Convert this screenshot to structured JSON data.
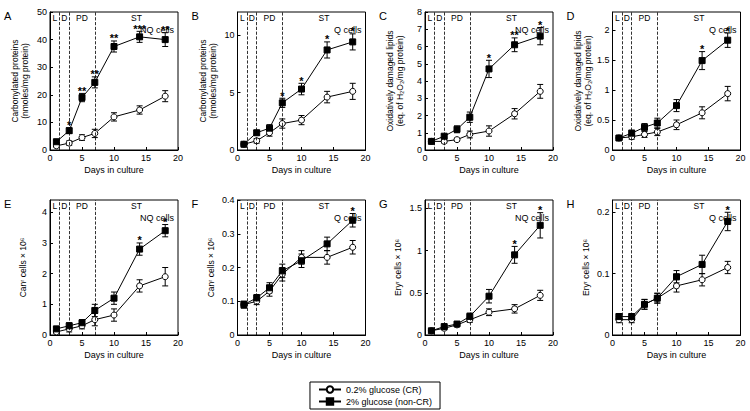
{
  "chart_data": [
    {
      "type": "line",
      "title": "A",
      "subtitle": "NQ cells",
      "x_label": "Days in culture",
      "y_label": "Carbonylated proteins\n(nmoles/mg protein)",
      "x": [
        1,
        3,
        5,
        7,
        10,
        14,
        18
      ],
      "xlim": [
        0,
        20
      ],
      "xticks": [
        0,
        5,
        10,
        15,
        20
      ],
      "ylim": [
        0,
        50
      ],
      "yticks": [
        0,
        10,
        20,
        30,
        40,
        50
      ],
      "phases": [
        {
          "label": "L",
          "start": 0,
          "end": 1.5
        },
        {
          "label": "D",
          "start": 1.5,
          "end": 3
        },
        {
          "label": "PD",
          "start": 3,
          "end": 7
        },
        {
          "label": "ST",
          "start": 7,
          "end": 20
        }
      ],
      "legend": "bottom",
      "series": [
        {
          "name": "0.2% glucose (CR)",
          "color": "#000000",
          "marker": "open_circle",
          "values": [
            1.5,
            2.5,
            4.5,
            6,
            12,
            14.5,
            19.5
          ],
          "errors": [
            0.5,
            0.8,
            1,
            1.5,
            1.5,
            1.5,
            2
          ]
        },
        {
          "name": "2% glucose (non-CR)",
          "color": "#000000",
          "marker": "square",
          "values": [
            3,
            7,
            19,
            24.5,
            37.5,
            41,
            40
          ],
          "errors": [
            0.5,
            1,
            1.5,
            2,
            2,
            2,
            2.5
          ],
          "significance": [
            null,
            "*",
            "**",
            "**",
            "**",
            "***",
            "**"
          ]
        }
      ]
    },
    {
      "type": "line",
      "title": "B",
      "subtitle": "Q cells",
      "x_label": "Days in culture",
      "y_label": "Carbonylated proteins\n(nmoles/mg protein)",
      "x": [
        1,
        3,
        5,
        7,
        10,
        14,
        18
      ],
      "xlim": [
        0,
        20
      ],
      "xticks": [
        0,
        5,
        10,
        15,
        20
      ],
      "ylim": [
        0,
        12
      ],
      "yticks": [
        0,
        5,
        10
      ],
      "phases": [
        {
          "label": "L",
          "start": 0,
          "end": 1.5
        },
        {
          "label": "D",
          "start": 1.5,
          "end": 3
        },
        {
          "label": "PD",
          "start": 3,
          "end": 7
        },
        {
          "label": "ST",
          "start": 7,
          "end": 20
        }
      ],
      "series": [
        {
          "name": "0.2% glucose (CR)",
          "color": "#000000",
          "marker": "open_circle",
          "values": [
            0.5,
            0.8,
            1.5,
            2.3,
            2.6,
            4.6,
            5.1
          ],
          "errors": [
            0.1,
            0.2,
            0.3,
            0.4,
            0.4,
            0.5,
            0.7
          ]
        },
        {
          "name": "2% glucose (non-CR)",
          "color": "#000000",
          "marker": "square",
          "values": [
            0.5,
            1.5,
            1.9,
            4.1,
            5.3,
            8.7,
            9.4
          ],
          "errors": [
            0.1,
            0.2,
            0.3,
            0.4,
            0.5,
            0.7,
            0.7
          ],
          "significance": [
            null,
            null,
            null,
            "*",
            "*",
            "*",
            "*"
          ]
        }
      ]
    },
    {
      "type": "line",
      "title": "C",
      "subtitle": "NQ cells",
      "x_label": "Days in culture",
      "y_label": "Oxidatively damaged lipids\n(eq. of H₂O₂/mg protein)",
      "x": [
        1,
        3,
        5,
        7,
        10,
        14,
        18
      ],
      "xlim": [
        0,
        20
      ],
      "xticks": [
        0,
        5,
        10,
        15,
        20
      ],
      "ylim": [
        0,
        8
      ],
      "yticks": [
        0,
        1,
        2,
        3,
        4,
        5,
        6,
        7,
        8
      ],
      "phases": [
        {
          "label": "L",
          "start": 0,
          "end": 1.5
        },
        {
          "label": "D",
          "start": 1.5,
          "end": 3
        },
        {
          "label": "PD",
          "start": 3,
          "end": 7
        },
        {
          "label": "ST",
          "start": 7,
          "end": 20
        }
      ],
      "series": [
        {
          "name": "0.2% glucose (CR)",
          "color": "#000000",
          "marker": "open_circle",
          "values": [
            0.5,
            0.5,
            0.6,
            0.9,
            1.1,
            2.1,
            3.4
          ],
          "errors": [
            0.1,
            0.1,
            0.1,
            0.2,
            0.3,
            0.3,
            0.4
          ]
        },
        {
          "name": "2% glucose (non-CR)",
          "color": "#000000",
          "marker": "square",
          "values": [
            0.5,
            0.8,
            1.2,
            1.9,
            4.7,
            6.1,
            6.6
          ],
          "errors": [
            0.1,
            0.1,
            0.2,
            0.3,
            0.5,
            0.4,
            0.5
          ],
          "significance": [
            null,
            null,
            null,
            null,
            "*",
            "**",
            "*"
          ]
        }
      ]
    },
    {
      "type": "line",
      "title": "D",
      "subtitle": "Q cells",
      "x_label": "Days in culture",
      "y_label": "Oxidatively damaged lipids\n(eq. of H₂O₂/mg protein)",
      "x": [
        1,
        3,
        5,
        7,
        10,
        14,
        18
      ],
      "xlim": [
        0,
        20
      ],
      "xticks": [
        0,
        5,
        10,
        15,
        20
      ],
      "ylim": [
        0,
        2.3
      ],
      "yticks": [
        0,
        0.5,
        1,
        1.5,
        2
      ],
      "phases": [
        {
          "label": "L",
          "start": 0,
          "end": 1.5
        },
        {
          "label": "D",
          "start": 1.5,
          "end": 3
        },
        {
          "label": "PD",
          "start": 3,
          "end": 7
        },
        {
          "label": "ST",
          "start": 7,
          "end": 20
        }
      ],
      "series": [
        {
          "name": "0.2% glucose (CR)",
          "color": "#000000",
          "marker": "open_circle",
          "values": [
            0.2,
            0.22,
            0.26,
            0.3,
            0.42,
            0.62,
            0.94
          ],
          "errors": [
            0.03,
            0.04,
            0.05,
            0.06,
            0.08,
            0.1,
            0.12
          ]
        },
        {
          "name": "2% glucose (non-CR)",
          "color": "#000000",
          "marker": "square",
          "values": [
            0.2,
            0.28,
            0.38,
            0.45,
            0.74,
            1.49,
            1.83
          ],
          "errors": [
            0.03,
            0.05,
            0.06,
            0.08,
            0.1,
            0.15,
            0.12
          ],
          "significance": [
            null,
            null,
            null,
            null,
            null,
            "*",
            "*"
          ]
        }
      ]
    },
    {
      "type": "line",
      "title": "E",
      "subtitle": "NQ cells",
      "x_label": "Days in culture",
      "y_label": "Canʳ cells × 10⁶",
      "x": [
        1,
        3,
        5,
        7,
        10,
        14,
        18
      ],
      "xlim": [
        0,
        20
      ],
      "xticks": [
        0,
        5,
        10,
        15,
        20
      ],
      "ylim": [
        0,
        4.4
      ],
      "yticks": [
        0,
        1,
        2,
        3,
        4
      ],
      "phases": [
        {
          "label": "L",
          "start": 0,
          "end": 1.5
        },
        {
          "label": "D",
          "start": 1.5,
          "end": 3
        },
        {
          "label": "PD",
          "start": 3,
          "end": 7
        },
        {
          "label": "ST",
          "start": 7,
          "end": 20
        }
      ],
      "series": [
        {
          "name": "0.2% glucose (CR)",
          "color": "#000000",
          "marker": "open_circle",
          "values": [
            0.1,
            0.2,
            0.3,
            0.5,
            0.65,
            1.6,
            1.9
          ],
          "errors": [
            0.05,
            0.1,
            0.1,
            0.2,
            0.2,
            0.2,
            0.3
          ]
        },
        {
          "name": "2% glucose (non-CR)",
          "color": "#000000",
          "marker": "square",
          "values": [
            0.2,
            0.3,
            0.4,
            0.8,
            1.2,
            2.8,
            3.4
          ],
          "errors": [
            0.05,
            0.1,
            0.1,
            0.2,
            0.2,
            0.2,
            0.2
          ],
          "significance": [
            null,
            null,
            null,
            null,
            null,
            "*",
            "*"
          ]
        }
      ]
    },
    {
      "type": "line",
      "title": "F",
      "subtitle": "Q cells",
      "x_label": "Days in culture",
      "y_label": "Canʳ cells × 10⁶",
      "x": [
        1,
        3,
        5,
        7,
        10,
        14,
        18
      ],
      "xlim": [
        0,
        20
      ],
      "xticks": [
        0,
        5,
        10,
        15,
        20
      ],
      "ylim": [
        0,
        0.4
      ],
      "yticks": [
        0,
        0.1,
        0.2,
        0.3,
        0.4
      ],
      "phases": [
        {
          "label": "L",
          "start": 0,
          "end": 1.5
        },
        {
          "label": "D",
          "start": 1.5,
          "end": 3
        },
        {
          "label": "PD",
          "start": 3,
          "end": 7
        },
        {
          "label": "ST",
          "start": 7,
          "end": 20
        }
      ],
      "series": [
        {
          "name": "0.2% glucose (CR)",
          "color": "#000000",
          "marker": "open_circle",
          "values": [
            0.09,
            0.1,
            0.13,
            0.18,
            0.23,
            0.23,
            0.26
          ],
          "errors": [
            0.01,
            0.01,
            0.015,
            0.02,
            0.02,
            0.02,
            0.02
          ]
        },
        {
          "name": "2% glucose (non-CR)",
          "color": "#000000",
          "marker": "square",
          "values": [
            0.09,
            0.11,
            0.14,
            0.19,
            0.22,
            0.27,
            0.34
          ],
          "errors": [
            0.01,
            0.01,
            0.015,
            0.02,
            0.02,
            0.02,
            0.02
          ],
          "significance": [
            null,
            null,
            null,
            null,
            null,
            null,
            "*"
          ]
        }
      ]
    },
    {
      "type": "line",
      "title": "G",
      "subtitle": "NQ cells",
      "x_label": "Days in culture",
      "y_label": "Eryʳ cells × 10⁶",
      "x": [
        1,
        3,
        5,
        7,
        10,
        14,
        18
      ],
      "xlim": [
        0,
        20
      ],
      "xticks": [
        0,
        5,
        10,
        15,
        20
      ],
      "ylim": [
        0,
        1.6
      ],
      "yticks": [
        0,
        0.5,
        1,
        1.5
      ],
      "phases": [
        {
          "label": "L",
          "start": 0,
          "end": 1.5
        },
        {
          "label": "D",
          "start": 1.5,
          "end": 3
        },
        {
          "label": "PD",
          "start": 3,
          "end": 7
        },
        {
          "label": "ST",
          "start": 7,
          "end": 20
        }
      ],
      "series": [
        {
          "name": "0.2% glucose (CR)",
          "color": "#000000",
          "marker": "open_circle",
          "values": [
            0.05,
            0.08,
            0.12,
            0.18,
            0.27,
            0.31,
            0.47
          ],
          "errors": [
            0.01,
            0.02,
            0.02,
            0.03,
            0.04,
            0.05,
            0.06
          ]
        },
        {
          "name": "2% glucose (non-CR)",
          "color": "#000000",
          "marker": "square",
          "values": [
            0.05,
            0.1,
            0.13,
            0.22,
            0.46,
            0.95,
            1.3
          ],
          "errors": [
            0.01,
            0.02,
            0.02,
            0.04,
            0.08,
            0.1,
            0.15
          ],
          "significance": [
            null,
            null,
            null,
            null,
            null,
            "*",
            "*"
          ]
        }
      ]
    },
    {
      "type": "line",
      "title": "H",
      "subtitle": "Q cells",
      "x_label": "Days in culture",
      "y_label": "Eryʳ cells × 10⁶",
      "x": [
        1,
        3,
        5,
        7,
        10,
        14,
        18
      ],
      "xlim": [
        0,
        20
      ],
      "xticks": [
        0,
        5,
        10,
        15,
        20
      ],
      "ylim": [
        0,
        0.22
      ],
      "yticks": [
        0,
        0.1,
        0.2
      ],
      "phases": [
        {
          "label": "L",
          "start": 0,
          "end": 1.5
        },
        {
          "label": "D",
          "start": 1.5,
          "end": 3
        },
        {
          "label": "PD",
          "start": 3,
          "end": 7
        },
        {
          "label": "ST",
          "start": 7,
          "end": 20
        }
      ],
      "series": [
        {
          "name": "0.2% glucose (CR)",
          "color": "#000000",
          "marker": "open_circle",
          "values": [
            0.025,
            0.025,
            0.05,
            0.06,
            0.08,
            0.09,
            0.11
          ],
          "errors": [
            0.005,
            0.005,
            0.008,
            0.008,
            0.01,
            0.01,
            0.01
          ]
        },
        {
          "name": "2% glucose (non-CR)",
          "color": "#000000",
          "marker": "square",
          "values": [
            0.03,
            0.03,
            0.05,
            0.06,
            0.095,
            0.115,
            0.185
          ],
          "errors": [
            0.005,
            0.005,
            0.008,
            0.008,
            0.01,
            0.015,
            0.015
          ],
          "significance": [
            null,
            null,
            null,
            null,
            null,
            null,
            "*"
          ]
        }
      ]
    }
  ]
}
